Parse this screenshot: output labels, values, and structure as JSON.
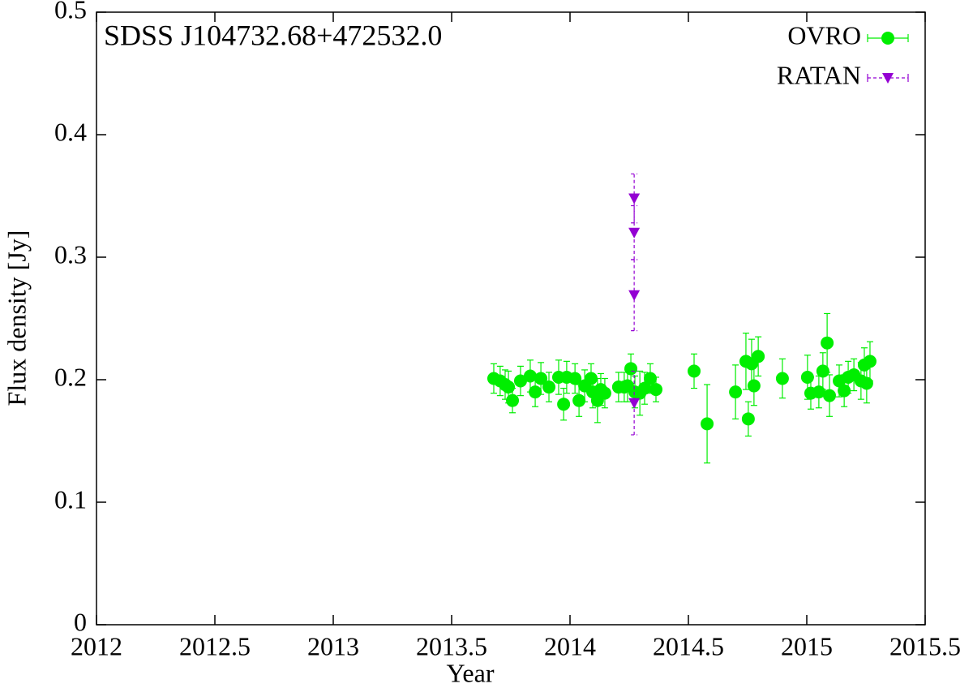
{
  "chart_data": {
    "type": "scatter",
    "title": "SDSS J104732.68+472532.0",
    "x_label": "Year",
    "y_label": "Flux density [Jy]",
    "xlim": [
      2012,
      2015.5
    ],
    "ylim": [
      0,
      0.5
    ],
    "xticks": [
      2012,
      2012.5,
      2013,
      2013.5,
      2014,
      2014.5,
      2015,
      2015.5
    ],
    "yticks": [
      0,
      0.1,
      0.2,
      0.3,
      0.4,
      0.5
    ],
    "legend": "top-right",
    "series": [
      {
        "name": "OVRO",
        "color": "#00ee00",
        "marker": "circle",
        "x": [
          2013.678,
          2013.705,
          2013.726,
          2013.74,
          2013.757,
          2013.791,
          2013.832,
          2013.853,
          2013.877,
          2013.911,
          2013.952,
          2013.973,
          2013.986,
          2014.021,
          2014.038,
          2014.062,
          2014.089,
          2014.096,
          2014.116,
          2014.13,
          2014.147,
          2014.205,
          2014.229,
          2014.243,
          2014.257,
          2014.274,
          2014.295,
          2014.315,
          2014.339,
          2014.363,
          2014.524,
          2014.579,
          2014.699,
          2014.743,
          2014.753,
          2014.767,
          2014.777,
          2014.795,
          2014.897,
          2015.003,
          2015.017,
          2015.051,
          2015.068,
          2015.086,
          2015.096,
          2015.137,
          2015.158,
          2015.175,
          2015.199,
          2015.229,
          2015.243,
          2015.253,
          2015.267
        ],
        "values": [
          0.201,
          0.199,
          0.196,
          0.194,
          0.183,
          0.199,
          0.203,
          0.19,
          0.201,
          0.194,
          0.202,
          0.18,
          0.202,
          0.201,
          0.183,
          0.195,
          0.201,
          0.19,
          0.183,
          0.192,
          0.189,
          0.194,
          0.194,
          0.195,
          0.209,
          0.19,
          0.189,
          0.193,
          0.201,
          0.192,
          0.207,
          0.164,
          0.19,
          0.215,
          0.168,
          0.213,
          0.195,
          0.219,
          0.201,
          0.202,
          0.189,
          0.19,
          0.207,
          0.23,
          0.187,
          0.199,
          0.191,
          0.202,
          0.204,
          0.199,
          0.212,
          0.197,
          0.215
        ],
        "errors": [
          0.012,
          0.012,
          0.012,
          0.013,
          0.01,
          0.012,
          0.013,
          0.012,
          0.013,
          0.012,
          0.014,
          0.013,
          0.013,
          0.012,
          0.013,
          0.013,
          0.012,
          0.013,
          0.018,
          0.013,
          0.012,
          0.012,
          0.012,
          0.013,
          0.012,
          0.013,
          0.018,
          0.013,
          0.012,
          0.01,
          0.014,
          0.032,
          0.022,
          0.023,
          0.014,
          0.02,
          0.016,
          0.016,
          0.016,
          0.018,
          0.013,
          0.013,
          0.015,
          0.024,
          0.017,
          0.013,
          0.013,
          0.013,
          0.013,
          0.015,
          0.014,
          0.016,
          0.016
        ]
      },
      {
        "name": "RATAN",
        "color": "#9400d3",
        "marker": "triangle-down",
        "dashed": true,
        "x": [
          2014.271,
          2014.271,
          2014.271,
          2014.271
        ],
        "values": [
          0.348,
          0.32,
          0.269,
          0.181
        ],
        "errors": [
          0.02,
          0.022,
          0.029,
          0.026
        ]
      }
    ]
  }
}
